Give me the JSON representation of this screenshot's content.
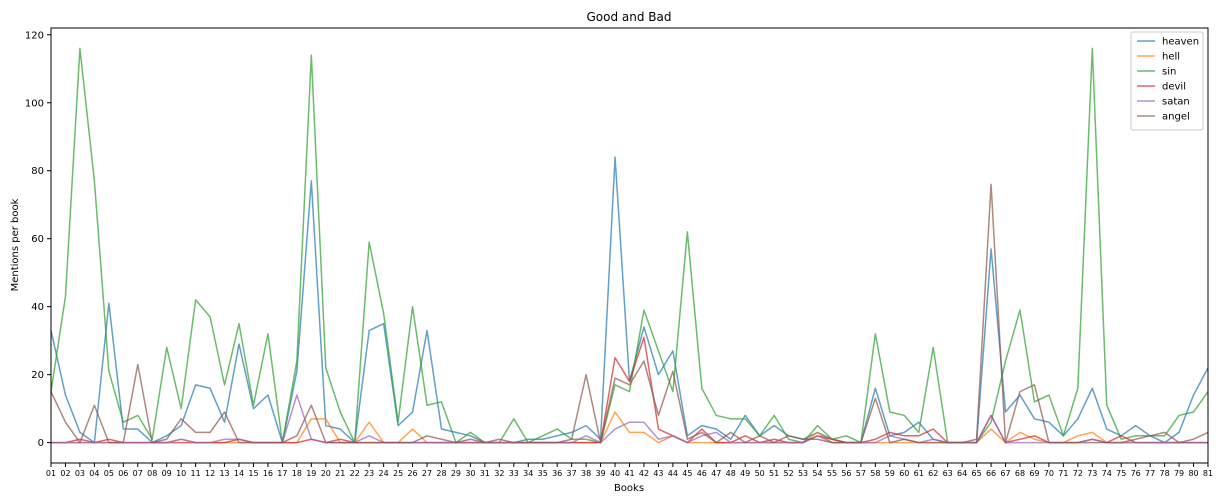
{
  "chart_data": {
    "type": "line",
    "title": "Good and Bad",
    "xlabel": "Books",
    "ylabel": "Mentions per book",
    "ylim": [
      -6,
      122
    ],
    "yticks": [
      0,
      20,
      40,
      60,
      80,
      100,
      120
    ],
    "legend_position": "top-right",
    "grid": false,
    "x": [
      "01",
      "02",
      "03",
      "04",
      "05",
      "06",
      "07",
      "08",
      "09",
      "10",
      "11",
      "12",
      "13",
      "14",
      "15",
      "16",
      "17",
      "18",
      "19",
      "20",
      "21",
      "22",
      "23",
      "24",
      "25",
      "26",
      "27",
      "28",
      "29",
      "30",
      "31",
      "32",
      "33",
      "34",
      "35",
      "36",
      "37",
      "38",
      "39",
      "40",
      "41",
      "42",
      "43",
      "44",
      "45",
      "46",
      "47",
      "48",
      "49",
      "50",
      "51",
      "52",
      "53",
      "54",
      "55",
      "56",
      "57",
      "58",
      "59",
      "60",
      "61",
      "62",
      "63",
      "64",
      "65",
      "66",
      "67",
      "68",
      "69",
      "70",
      "71",
      "72",
      "73",
      "74",
      "75",
      "76",
      "77",
      "78",
      "79",
      "80",
      "81"
    ],
    "series": [
      {
        "name": "heaven",
        "color": "#1f77b4",
        "values": [
          33,
          14,
          3,
          0,
          41,
          4,
          4,
          0,
          2,
          5,
          17,
          16,
          6,
          29,
          10,
          14,
          0,
          21,
          77,
          5,
          4,
          0,
          33,
          35,
          5,
          9,
          33,
          4,
          3,
          2,
          0,
          0,
          0,
          1,
          1,
          2,
          3,
          5,
          1,
          84,
          18,
          34,
          20,
          27,
          2,
          5,
          4,
          1,
          8,
          2,
          5,
          2,
          1,
          3,
          1,
          0,
          0,
          16,
          2,
          3,
          6,
          1,
          0,
          0,
          0,
          57,
          9,
          14,
          7,
          6,
          2,
          7,
          16,
          4,
          2,
          5,
          2,
          0,
          3,
          14,
          22
        ]
      },
      {
        "name": "hell",
        "color": "#ff7f0e",
        "values": [
          0,
          0,
          0,
          0,
          0,
          0,
          0,
          0,
          0,
          1,
          0,
          0,
          0,
          0,
          0,
          0,
          0,
          0,
          7,
          7,
          0,
          0,
          6,
          0,
          0,
          4,
          0,
          0,
          0,
          0,
          0,
          0,
          0,
          0,
          0,
          0,
          0,
          0,
          0,
          9,
          3,
          3,
          0,
          2,
          0,
          0,
          0,
          0,
          0,
          0,
          0,
          0,
          0,
          3,
          0,
          0,
          0,
          0,
          0,
          0,
          0,
          0,
          0,
          0,
          0,
          4,
          0,
          3,
          1,
          0,
          0,
          2,
          3,
          0,
          0,
          0,
          0,
          0,
          0,
          0,
          0
        ]
      },
      {
        "name": "sin",
        "color": "#2ca02c",
        "values": [
          15,
          43,
          116,
          77,
          21,
          6,
          8,
          1,
          28,
          10,
          42,
          37,
          17,
          35,
          11,
          32,
          0,
          24,
          114,
          22,
          9,
          0,
          59,
          38,
          6,
          40,
          11,
          12,
          0,
          3,
          0,
          0,
          7,
          0,
          2,
          4,
          1,
          1,
          0,
          17,
          15,
          39,
          27,
          15,
          62,
          16,
          8,
          7,
          7,
          2,
          8,
          1,
          0,
          5,
          1,
          2,
          0,
          32,
          9,
          8,
          3,
          28,
          0,
          0,
          0,
          6,
          24,
          39,
          12,
          14,
          2,
          16,
          116,
          11,
          1,
          2,
          2,
          2,
          8,
          9,
          15
        ]
      },
      {
        "name": "devil",
        "color": "#d62728",
        "values": [
          0,
          0,
          1,
          0,
          1,
          0,
          0,
          0,
          0,
          0,
          0,
          0,
          0,
          1,
          0,
          0,
          0,
          0,
          1,
          0,
          1,
          0,
          0,
          0,
          0,
          0,
          0,
          0,
          0,
          0,
          0,
          0,
          0,
          0,
          0,
          0,
          0,
          0,
          0,
          25,
          18,
          31,
          4,
          2,
          0,
          4,
          0,
          0,
          2,
          0,
          1,
          0,
          0,
          2,
          1,
          0,
          0,
          1,
          3,
          2,
          2,
          4,
          0,
          0,
          0,
          8,
          0,
          1,
          2,
          0,
          0,
          0,
          1,
          0,
          2,
          0,
          0,
          0,
          0,
          0,
          0
        ]
      },
      {
        "name": "satan",
        "color": "#9467bd",
        "values": [
          0,
          0,
          0,
          0,
          0,
          0,
          0,
          0,
          0,
          1,
          0,
          0,
          1,
          1,
          0,
          0,
          0,
          14,
          1,
          0,
          0,
          0,
          2,
          0,
          0,
          0,
          0,
          0,
          0,
          0,
          0,
          0,
          0,
          0,
          0,
          0,
          0,
          2,
          0,
          4,
          6,
          6,
          1,
          2,
          0,
          2,
          3,
          0,
          0,
          0,
          0,
          0,
          0,
          2,
          0,
          0,
          0,
          0,
          2,
          1,
          0,
          1,
          0,
          0,
          0,
          8,
          0,
          0,
          0,
          0,
          0,
          0,
          1,
          0,
          0,
          0,
          0,
          0,
          0,
          0,
          0
        ]
      },
      {
        "name": "angel",
        "color": "#8c564b",
        "values": [
          15,
          6,
          0,
          11,
          0,
          0,
          23,
          0,
          1,
          7,
          3,
          3,
          9,
          0,
          0,
          0,
          0,
          2,
          11,
          0,
          0,
          0,
          0,
          0,
          0,
          0,
          2,
          1,
          0,
          1,
          0,
          1,
          0,
          0,
          0,
          0,
          1,
          20,
          0,
          19,
          17,
          24,
          8,
          21,
          1,
          3,
          0,
          3,
          0,
          2,
          0,
          2,
          1,
          1,
          0,
          0,
          0,
          13,
          0,
          1,
          0,
          0,
          0,
          0,
          1,
          76,
          0,
          15,
          17,
          0,
          0,
          0,
          0,
          0,
          0,
          1,
          2,
          3,
          0,
          1,
          3
        ]
      }
    ]
  }
}
